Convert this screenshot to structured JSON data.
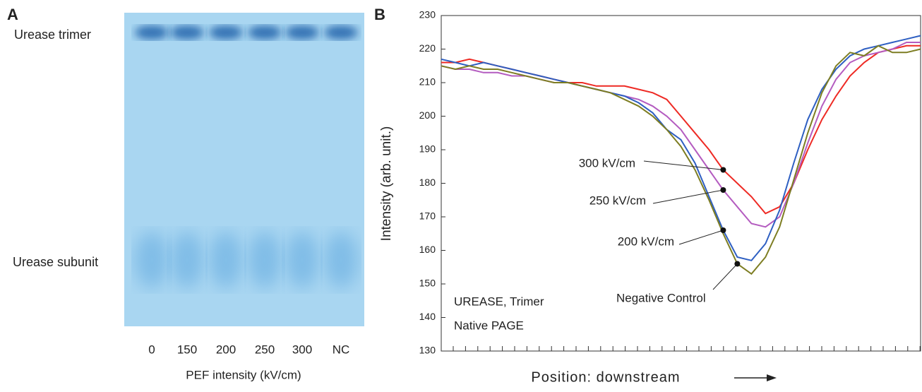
{
  "panel_a": {
    "label": "A",
    "band_labels": [
      "Urease trimer",
      "Urease subunit"
    ],
    "lanes": [
      "0",
      "150",
      "200",
      "250",
      "300",
      "NC"
    ],
    "xlabel": "PEF intensity (kV/cm)"
  },
  "chart_data": {
    "type": "line",
    "label": "B",
    "ylabel": "Intensity (arb. unit.)",
    "xlabel": "Position:  downstream",
    "annotations": [
      "UREASE, Trimer",
      "Native PAGE"
    ],
    "ylim": [
      130,
      230
    ],
    "yticks": [
      130,
      140,
      150,
      160,
      170,
      180,
      190,
      200,
      210,
      220,
      230
    ],
    "series": [
      {
        "name": "300 kV/cm",
        "color": "#ee2a24",
        "values": [
          216,
          216,
          217,
          216,
          215,
          214,
          213,
          212,
          211,
          210,
          210,
          209,
          209,
          209,
          208,
          207,
          205,
          200,
          195,
          190,
          184,
          180,
          176,
          171,
          173,
          180,
          190,
          199,
          206,
          212,
          216,
          219,
          220,
          221,
          221
        ]
      },
      {
        "name": "250 kV/cm",
        "color": "#b45cc0",
        "values": [
          215,
          214,
          214,
          213,
          213,
          212,
          212,
          211,
          210,
          210,
          209,
          208,
          207,
          206,
          205,
          203,
          200,
          196,
          190,
          184,
          178,
          173,
          168,
          167,
          170,
          180,
          192,
          203,
          211,
          216,
          218,
          219,
          220,
          222,
          222
        ]
      },
      {
        "name": "200 kV/cm",
        "color": "#2e5fc2",
        "values": [
          217,
          216,
          215,
          216,
          215,
          214,
          213,
          212,
          211,
          210,
          209,
          208,
          207,
          206,
          204,
          201,
          196,
          193,
          186,
          176,
          166,
          158,
          157,
          162,
          172,
          186,
          199,
          208,
          214,
          218,
          220,
          221,
          222,
          223,
          224
        ]
      },
      {
        "name": "Negative Control",
        "color": "#7d7d22",
        "values": [
          215,
          214,
          215,
          214,
          214,
          213,
          212,
          211,
          210,
          210,
          209,
          208,
          207,
          205,
          203,
          200,
          196,
          191,
          184,
          175,
          165,
          156,
          153,
          158,
          167,
          181,
          195,
          207,
          215,
          219,
          218,
          221,
          219,
          219,
          220
        ]
      }
    ]
  }
}
